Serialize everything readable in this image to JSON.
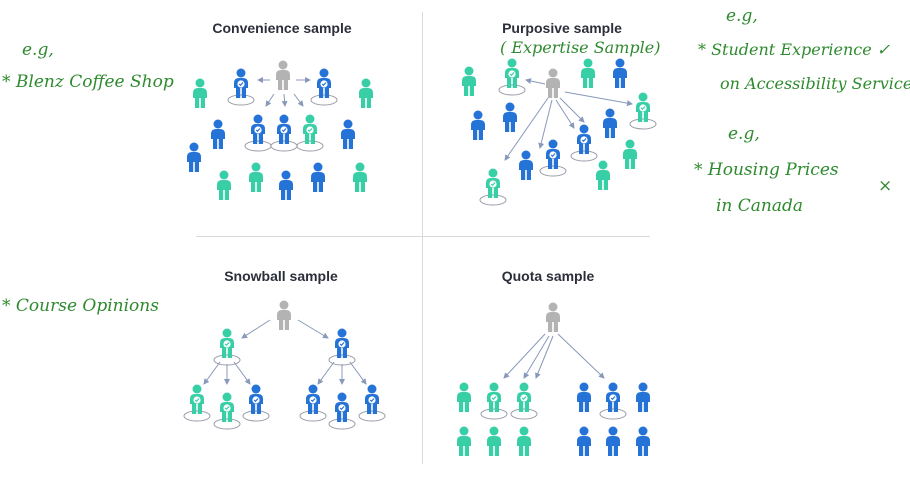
{
  "colors": {
    "teal": "#38cfa7",
    "blue": "#2573d7",
    "gray": "#b3b3b3",
    "arrow": "#8899bb",
    "ink": "#2e8a2e",
    "title": "#2b2f3a"
  },
  "icons": [
    "person-icon",
    "check-icon",
    "arrow-icon"
  ],
  "panels": {
    "convenience": {
      "title": "Convenience sample"
    },
    "purposive": {
      "title": "Purposive sample",
      "annotation": "( Expertise Sample)"
    },
    "snowball": {
      "title": "Snowball sample"
    },
    "quota": {
      "title": "Quota sample"
    }
  },
  "notes": {
    "convenience_eg": "e.g,",
    "convenience_example": "* Blenz Coffee Shop",
    "snowball_example": "* Course Opinions",
    "purposive_eg": "e.g,",
    "purposive_example_line1": "* Student Experience  ✓",
    "purposive_example_line2": "on Accessibility Services",
    "housing_eg": "e.g,",
    "housing_line1": "* Housing Prices",
    "housing_line2": "in Canada",
    "housing_mark": "×"
  }
}
